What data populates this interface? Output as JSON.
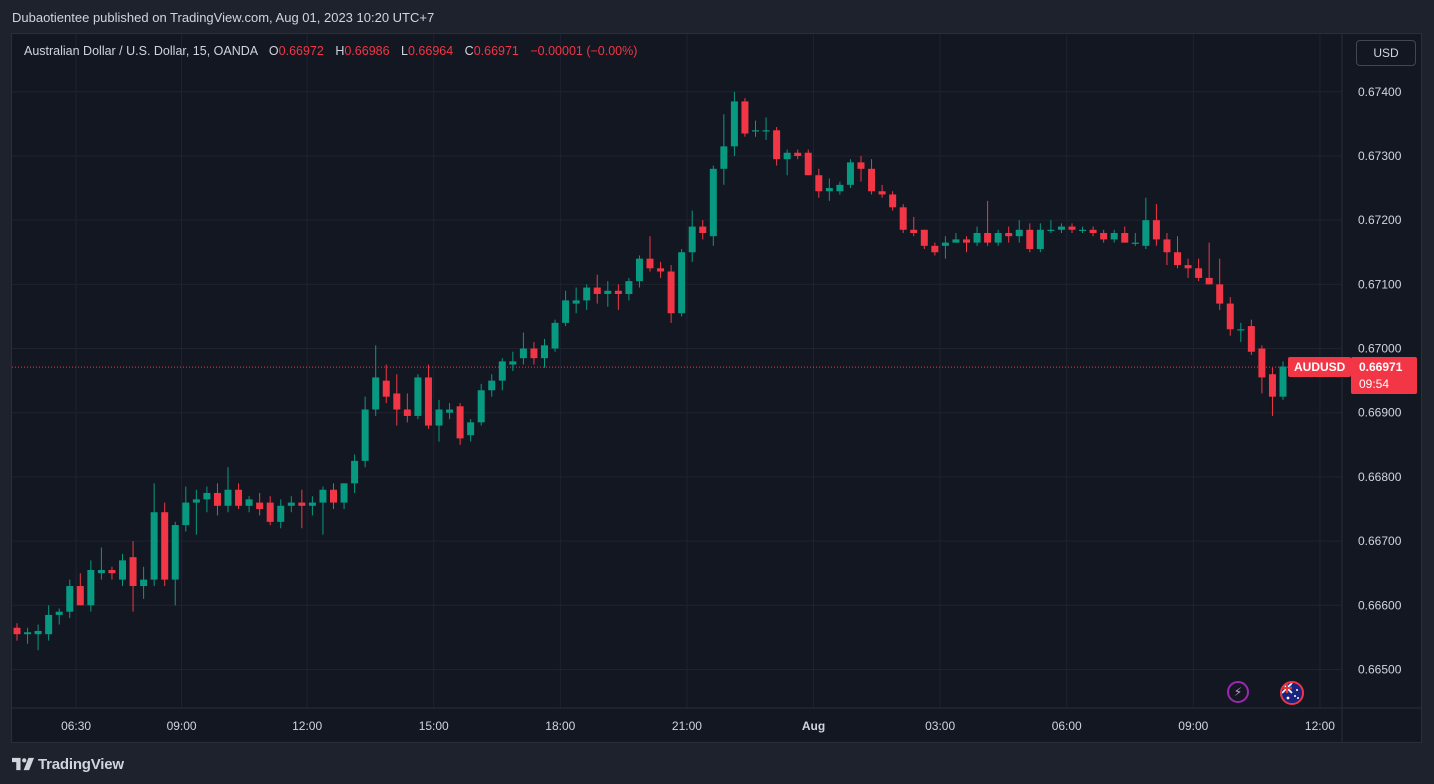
{
  "header": {
    "published_text": "Dubaotientee published on TradingView.com, Aug 01, 2023 10:20 UTC+7"
  },
  "legend": {
    "symbol_desc": "Australian Dollar / U.S. Dollar, 15, OANDA",
    "o_label": "O",
    "o_value": "0.66972",
    "h_label": "H",
    "h_value": "0.66986",
    "l_label": "L",
    "l_value": "0.66964",
    "c_label": "C",
    "c_value": "0.66971",
    "change": "−0.00001 (−0.00%)"
  },
  "currency_button": "USD",
  "last_price": {
    "symbol": "AUDUSD",
    "price": "0.66971",
    "countdown": "09:54"
  },
  "footer": {
    "brand": "TradingView",
    "logo_icon": "tradingview-logo-icon"
  },
  "icons": {
    "event_icon": "lightning-icon",
    "country_icon": "au-flag-icon"
  },
  "colors": {
    "up": "#089981",
    "down": "#f23645",
    "background": "#131722",
    "grid": "#1f2330",
    "text": "#d1d4dc"
  },
  "chart_data": {
    "type": "candlestick",
    "symbol": "AUDUSD",
    "interval": "15",
    "y_ticks": [
      "0.67400",
      "0.67300",
      "0.67200",
      "0.67100",
      "0.67000",
      "0.66900",
      "0.66800",
      "0.66700",
      "0.66600",
      "0.66500"
    ],
    "y_range": [
      0.6644,
      0.6749
    ],
    "x_ticks": [
      "06:30",
      "09:00",
      "12:00",
      "15:00",
      "18:00",
      "21:00",
      "Aug",
      "03:00",
      "06:00",
      "09:00",
      "12:00"
    ],
    "last_price": 0.66971,
    "candles": [
      {
        "o": 0.66565,
        "h": 0.66572,
        "l": 0.66545,
        "c": 0.66555
      },
      {
        "o": 0.66555,
        "h": 0.66565,
        "l": 0.6654,
        "c": 0.66558
      },
      {
        "o": 0.66555,
        "h": 0.6657,
        "l": 0.6653,
        "c": 0.6656
      },
      {
        "o": 0.66555,
        "h": 0.666,
        "l": 0.66545,
        "c": 0.66585
      },
      {
        "o": 0.66585,
        "h": 0.66595,
        "l": 0.6657,
        "c": 0.6659
      },
      {
        "o": 0.6659,
        "h": 0.6664,
        "l": 0.6658,
        "c": 0.6663
      },
      {
        "o": 0.6663,
        "h": 0.6665,
        "l": 0.666,
        "c": 0.666
      },
      {
        "o": 0.666,
        "h": 0.6667,
        "l": 0.6659,
        "c": 0.66655
      },
      {
        "o": 0.6665,
        "h": 0.6669,
        "l": 0.6664,
        "c": 0.66655
      },
      {
        "o": 0.66655,
        "h": 0.6666,
        "l": 0.6664,
        "c": 0.6665
      },
      {
        "o": 0.6664,
        "h": 0.6668,
        "l": 0.6663,
        "c": 0.6667
      },
      {
        "o": 0.66675,
        "h": 0.667,
        "l": 0.6659,
        "c": 0.6663
      },
      {
        "o": 0.6663,
        "h": 0.6666,
        "l": 0.6661,
        "c": 0.6664
      },
      {
        "o": 0.6664,
        "h": 0.6679,
        "l": 0.6663,
        "c": 0.66745
      },
      {
        "o": 0.66745,
        "h": 0.6676,
        "l": 0.6663,
        "c": 0.6664
      },
      {
        "o": 0.6664,
        "h": 0.6673,
        "l": 0.666,
        "c": 0.66725
      },
      {
        "o": 0.66725,
        "h": 0.66785,
        "l": 0.66715,
        "c": 0.6676
      },
      {
        "o": 0.6676,
        "h": 0.6678,
        "l": 0.6671,
        "c": 0.66765
      },
      {
        "o": 0.66765,
        "h": 0.66785,
        "l": 0.66745,
        "c": 0.66775
      },
      {
        "o": 0.66775,
        "h": 0.6679,
        "l": 0.6674,
        "c": 0.66755
      },
      {
        "o": 0.66755,
        "h": 0.66815,
        "l": 0.66745,
        "c": 0.6678
      },
      {
        "o": 0.6678,
        "h": 0.6679,
        "l": 0.6675,
        "c": 0.66755
      },
      {
        "o": 0.66755,
        "h": 0.6677,
        "l": 0.66745,
        "c": 0.66765
      },
      {
        "o": 0.6676,
        "h": 0.66775,
        "l": 0.6674,
        "c": 0.6675
      },
      {
        "o": 0.6676,
        "h": 0.6677,
        "l": 0.66725,
        "c": 0.6673
      },
      {
        "o": 0.6673,
        "h": 0.66765,
        "l": 0.6672,
        "c": 0.66755
      },
      {
        "o": 0.66755,
        "h": 0.6677,
        "l": 0.66745,
        "c": 0.6676
      },
      {
        "o": 0.6676,
        "h": 0.6678,
        "l": 0.6672,
        "c": 0.66755
      },
      {
        "o": 0.66755,
        "h": 0.6677,
        "l": 0.6674,
        "c": 0.6676
      },
      {
        "o": 0.6676,
        "h": 0.66785,
        "l": 0.6671,
        "c": 0.6678
      },
      {
        "o": 0.6678,
        "h": 0.6679,
        "l": 0.6675,
        "c": 0.6676
      },
      {
        "o": 0.6676,
        "h": 0.6679,
        "l": 0.6675,
        "c": 0.6679
      },
      {
        "o": 0.6679,
        "h": 0.66835,
        "l": 0.66775,
        "c": 0.66825
      },
      {
        "o": 0.66825,
        "h": 0.66925,
        "l": 0.66815,
        "c": 0.66905
      },
      {
        "o": 0.66905,
        "h": 0.67005,
        "l": 0.66895,
        "c": 0.66955
      },
      {
        "o": 0.6695,
        "h": 0.66975,
        "l": 0.66915,
        "c": 0.66925
      },
      {
        "o": 0.6693,
        "h": 0.6696,
        "l": 0.6688,
        "c": 0.66905
      },
      {
        "o": 0.66905,
        "h": 0.6693,
        "l": 0.66885,
        "c": 0.66895
      },
      {
        "o": 0.66895,
        "h": 0.6696,
        "l": 0.6689,
        "c": 0.66955
      },
      {
        "o": 0.66955,
        "h": 0.66975,
        "l": 0.66875,
        "c": 0.6688
      },
      {
        "o": 0.6688,
        "h": 0.6692,
        "l": 0.66855,
        "c": 0.66905
      },
      {
        "o": 0.669,
        "h": 0.66915,
        "l": 0.6689,
        "c": 0.66905
      },
      {
        "o": 0.6691,
        "h": 0.66915,
        "l": 0.6685,
        "c": 0.6686
      },
      {
        "o": 0.66865,
        "h": 0.6689,
        "l": 0.66855,
        "c": 0.66885
      },
      {
        "o": 0.66885,
        "h": 0.66945,
        "l": 0.6688,
        "c": 0.66935
      },
      {
        "o": 0.66935,
        "h": 0.6696,
        "l": 0.66925,
        "c": 0.6695
      },
      {
        "o": 0.6695,
        "h": 0.66985,
        "l": 0.66935,
        "c": 0.6698
      },
      {
        "o": 0.66975,
        "h": 0.66995,
        "l": 0.66965,
        "c": 0.6698
      },
      {
        "o": 0.66985,
        "h": 0.67025,
        "l": 0.66975,
        "c": 0.67
      },
      {
        "o": 0.67,
        "h": 0.6701,
        "l": 0.66975,
        "c": 0.66985
      },
      {
        "o": 0.66985,
        "h": 0.67015,
        "l": 0.6697,
        "c": 0.67005
      },
      {
        "o": 0.67,
        "h": 0.67045,
        "l": 0.66995,
        "c": 0.6704
      },
      {
        "o": 0.6704,
        "h": 0.6709,
        "l": 0.67035,
        "c": 0.67075
      },
      {
        "o": 0.6707,
        "h": 0.67095,
        "l": 0.67055,
        "c": 0.67075
      },
      {
        "o": 0.67075,
        "h": 0.671,
        "l": 0.6706,
        "c": 0.67095
      },
      {
        "o": 0.67095,
        "h": 0.67115,
        "l": 0.6707,
        "c": 0.67085
      },
      {
        "o": 0.67085,
        "h": 0.67105,
        "l": 0.67065,
        "c": 0.6709
      },
      {
        "o": 0.6709,
        "h": 0.671,
        "l": 0.6706,
        "c": 0.67085
      },
      {
        "o": 0.67085,
        "h": 0.6711,
        "l": 0.67075,
        "c": 0.67105
      },
      {
        "o": 0.67105,
        "h": 0.67145,
        "l": 0.67095,
        "c": 0.6714
      },
      {
        "o": 0.6714,
        "h": 0.67175,
        "l": 0.6712,
        "c": 0.67125
      },
      {
        "o": 0.67125,
        "h": 0.67135,
        "l": 0.6711,
        "c": 0.6712
      },
      {
        "o": 0.6712,
        "h": 0.6713,
        "l": 0.6704,
        "c": 0.67055
      },
      {
        "o": 0.67055,
        "h": 0.67155,
        "l": 0.6705,
        "c": 0.6715
      },
      {
        "o": 0.6715,
        "h": 0.67215,
        "l": 0.67135,
        "c": 0.6719
      },
      {
        "o": 0.6719,
        "h": 0.672,
        "l": 0.6717,
        "c": 0.6718
      },
      {
        "o": 0.67175,
        "h": 0.67285,
        "l": 0.6716,
        "c": 0.6728
      },
      {
        "o": 0.6728,
        "h": 0.67365,
        "l": 0.67255,
        "c": 0.67315
      },
      {
        "o": 0.67315,
        "h": 0.674,
        "l": 0.673,
        "c": 0.67385
      },
      {
        "o": 0.67385,
        "h": 0.6739,
        "l": 0.6733,
        "c": 0.67335
      },
      {
        "o": 0.6734,
        "h": 0.67355,
        "l": 0.6733,
        "c": 0.6734
      },
      {
        "o": 0.6734,
        "h": 0.6736,
        "l": 0.67325,
        "c": 0.6734
      },
      {
        "o": 0.6734,
        "h": 0.67345,
        "l": 0.67285,
        "c": 0.67295
      },
      {
        "o": 0.67295,
        "h": 0.6731,
        "l": 0.6727,
        "c": 0.67305
      },
      {
        "o": 0.67305,
        "h": 0.6731,
        "l": 0.67295,
        "c": 0.673
      },
      {
        "o": 0.67305,
        "h": 0.6731,
        "l": 0.6727,
        "c": 0.6727
      },
      {
        "o": 0.6727,
        "h": 0.6728,
        "l": 0.67235,
        "c": 0.67245
      },
      {
        "o": 0.67245,
        "h": 0.67265,
        "l": 0.6723,
        "c": 0.6725
      },
      {
        "o": 0.67245,
        "h": 0.6726,
        "l": 0.6724,
        "c": 0.67255
      },
      {
        "o": 0.67255,
        "h": 0.67295,
        "l": 0.6725,
        "c": 0.6729
      },
      {
        "o": 0.6729,
        "h": 0.673,
        "l": 0.6726,
        "c": 0.6728
      },
      {
        "o": 0.6728,
        "h": 0.67295,
        "l": 0.6724,
        "c": 0.67245
      },
      {
        "o": 0.67245,
        "h": 0.67255,
        "l": 0.67235,
        "c": 0.6724
      },
      {
        "o": 0.6724,
        "h": 0.67245,
        "l": 0.67215,
        "c": 0.6722
      },
      {
        "o": 0.6722,
        "h": 0.67225,
        "l": 0.6718,
        "c": 0.67185
      },
      {
        "o": 0.67185,
        "h": 0.67205,
        "l": 0.67175,
        "c": 0.6718
      },
      {
        "o": 0.67185,
        "h": 0.67185,
        "l": 0.67155,
        "c": 0.6716
      },
      {
        "o": 0.6716,
        "h": 0.67165,
        "l": 0.67145,
        "c": 0.6715
      },
      {
        "o": 0.6716,
        "h": 0.67175,
        "l": 0.6714,
        "c": 0.67165
      },
      {
        "o": 0.67165,
        "h": 0.6718,
        "l": 0.67165,
        "c": 0.6717
      },
      {
        "o": 0.6717,
        "h": 0.67175,
        "l": 0.6715,
        "c": 0.67165
      },
      {
        "o": 0.67165,
        "h": 0.6719,
        "l": 0.6716,
        "c": 0.6718
      },
      {
        "o": 0.6718,
        "h": 0.6723,
        "l": 0.6716,
        "c": 0.67165
      },
      {
        "o": 0.67165,
        "h": 0.67185,
        "l": 0.6716,
        "c": 0.6718
      },
      {
        "o": 0.6718,
        "h": 0.6719,
        "l": 0.67165,
        "c": 0.67175
      },
      {
        "o": 0.67175,
        "h": 0.672,
        "l": 0.67165,
        "c": 0.67185
      },
      {
        "o": 0.67185,
        "h": 0.67195,
        "l": 0.6715,
        "c": 0.67155
      },
      {
        "o": 0.67155,
        "h": 0.67195,
        "l": 0.6715,
        "c": 0.67185
      },
      {
        "o": 0.67185,
        "h": 0.672,
        "l": 0.6718,
        "c": 0.67185
      },
      {
        "o": 0.67185,
        "h": 0.67195,
        "l": 0.6718,
        "c": 0.6719
      },
      {
        "o": 0.6719,
        "h": 0.67195,
        "l": 0.6718,
        "c": 0.67185
      },
      {
        "o": 0.67185,
        "h": 0.6719,
        "l": 0.6718,
        "c": 0.67185
      },
      {
        "o": 0.67185,
        "h": 0.6719,
        "l": 0.67175,
        "c": 0.6718
      },
      {
        "o": 0.6718,
        "h": 0.67185,
        "l": 0.67165,
        "c": 0.6717
      },
      {
        "o": 0.6717,
        "h": 0.67185,
        "l": 0.67165,
        "c": 0.6718
      },
      {
        "o": 0.6718,
        "h": 0.6719,
        "l": 0.67165,
        "c": 0.67165
      },
      {
        "o": 0.67165,
        "h": 0.6718,
        "l": 0.6716,
        "c": 0.67165
      },
      {
        "o": 0.6716,
        "h": 0.67235,
        "l": 0.67155,
        "c": 0.672
      },
      {
        "o": 0.672,
        "h": 0.67225,
        "l": 0.6716,
        "c": 0.6717
      },
      {
        "o": 0.6717,
        "h": 0.6718,
        "l": 0.6713,
        "c": 0.6715
      },
      {
        "o": 0.6715,
        "h": 0.67175,
        "l": 0.67125,
        "c": 0.6713
      },
      {
        "o": 0.6713,
        "h": 0.6714,
        "l": 0.6711,
        "c": 0.67125
      },
      {
        "o": 0.67125,
        "h": 0.6714,
        "l": 0.67105,
        "c": 0.6711
      },
      {
        "o": 0.6711,
        "h": 0.67165,
        "l": 0.671,
        "c": 0.671
      },
      {
        "o": 0.671,
        "h": 0.6714,
        "l": 0.6706,
        "c": 0.6707
      },
      {
        "o": 0.6707,
        "h": 0.6708,
        "l": 0.6702,
        "c": 0.6703
      },
      {
        "o": 0.6703,
        "h": 0.6704,
        "l": 0.6701,
        "c": 0.6703
      },
      {
        "o": 0.67035,
        "h": 0.67045,
        "l": 0.6699,
        "c": 0.66995
      },
      {
        "o": 0.67,
        "h": 0.67005,
        "l": 0.6693,
        "c": 0.66955
      },
      {
        "o": 0.6696,
        "h": 0.6697,
        "l": 0.66895,
        "c": 0.66925
      },
      {
        "o": 0.66925,
        "h": 0.6698,
        "l": 0.6692,
        "c": 0.66972
      },
      {
        "o": 0.66972,
        "h": 0.66986,
        "l": 0.66964,
        "c": 0.66971
      }
    ]
  }
}
